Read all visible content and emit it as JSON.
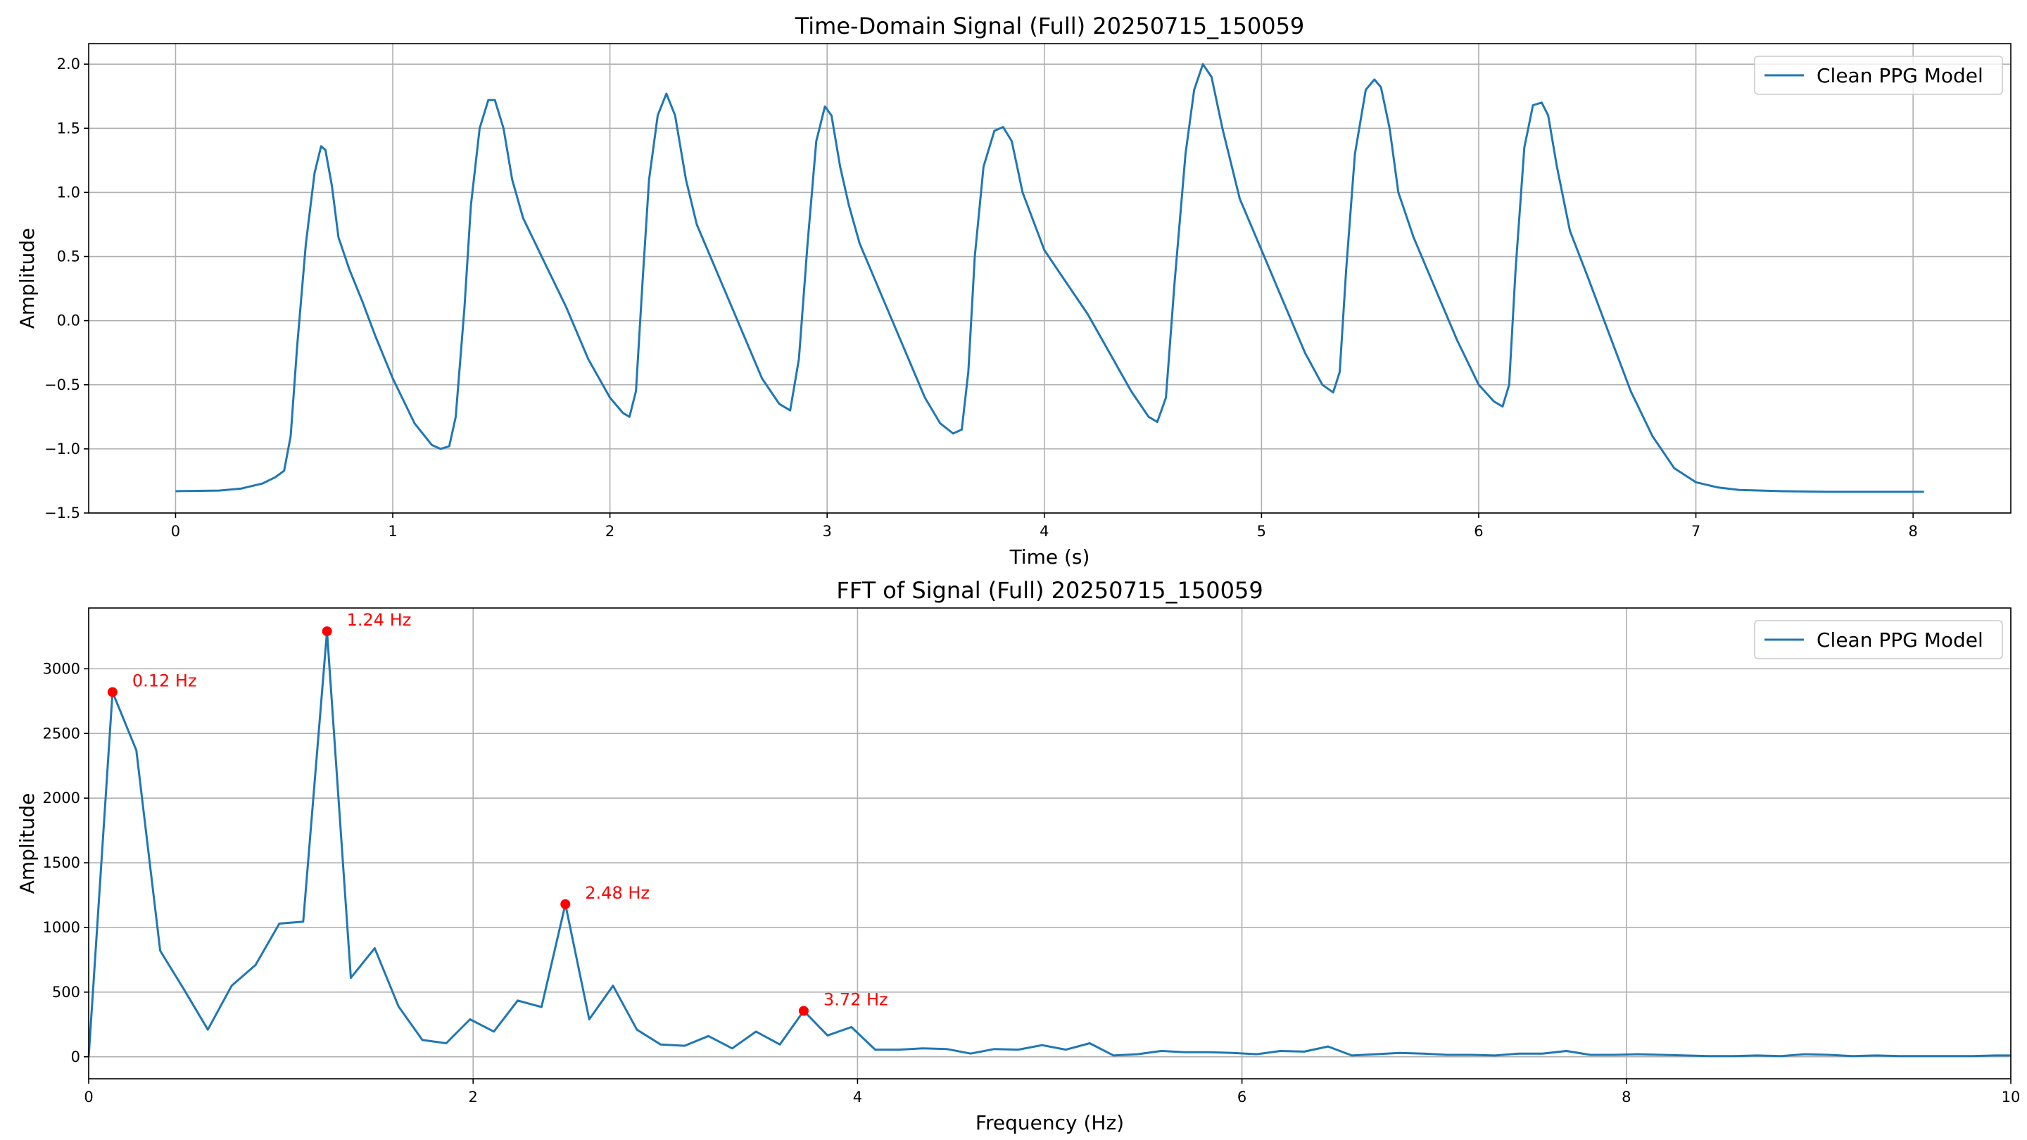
{
  "chart_data": [
    {
      "type": "line",
      "title": "Time-Domain Signal (Full) 20250715_150059",
      "xlabel": "Time (s)",
      "ylabel": "Amplitude",
      "xlim": [
        -0.4,
        8.45
      ],
      "ylim": [
        -1.5,
        2.16
      ],
      "xticks": [
        0,
        1,
        2,
        3,
        4,
        5,
        6,
        7,
        8
      ],
      "yticks": [
        -1.5,
        -1.0,
        -0.5,
        0.0,
        0.5,
        1.0,
        1.5,
        2.0
      ],
      "xtick_labels": [
        "0",
        "1",
        "2",
        "3",
        "4",
        "5",
        "6",
        "7",
        "8"
      ],
      "ytick_labels": [
        "−1.5",
        "−1.0",
        "−0.5",
        "0.0",
        "0.5",
        "1.0",
        "1.5",
        "2.0"
      ],
      "grid": true,
      "legend_position": "upper right",
      "series": [
        {
          "name": "Clean PPG Model",
          "color": "#1f77b4",
          "x": [
            0,
            0.2,
            0.3,
            0.4,
            0.46,
            0.5,
            0.53,
            0.56,
            0.6,
            0.64,
            0.67,
            0.69,
            0.72,
            0.75,
            0.8,
            0.86,
            0.92,
            1.0,
            1.1,
            1.18,
            1.22,
            1.26,
            1.29,
            1.33,
            1.36,
            1.4,
            1.44,
            1.47,
            1.51,
            1.55,
            1.6,
            1.7,
            1.8,
            1.9,
            2.0,
            2.06,
            2.09,
            2.12,
            2.15,
            2.18,
            2.22,
            2.26,
            2.3,
            2.35,
            2.4,
            2.5,
            2.6,
            2.7,
            2.78,
            2.83,
            2.87,
            2.91,
            2.95,
            2.99,
            3.02,
            3.06,
            3.1,
            3.15,
            3.25,
            3.35,
            3.45,
            3.52,
            3.58,
            3.62,
            3.65,
            3.68,
            3.72,
            3.77,
            3.81,
            3.85,
            3.9,
            4.0,
            4.1,
            4.2,
            4.3,
            4.4,
            4.48,
            4.52,
            4.56,
            4.6,
            4.65,
            4.69,
            4.73,
            4.77,
            4.82,
            4.9,
            5.0,
            5.1,
            5.2,
            5.28,
            5.33,
            5.36,
            5.39,
            5.43,
            5.48,
            5.52,
            5.55,
            5.59,
            5.63,
            5.7,
            5.8,
            5.9,
            6.0,
            6.07,
            6.11,
            6.14,
            6.17,
            6.21,
            6.25,
            6.29,
            6.32,
            6.36,
            6.42,
            6.5,
            6.6,
            6.7,
            6.8,
            6.9,
            7.0,
            7.1,
            7.2,
            7.4,
            7.6,
            8.05
          ],
          "y": [
            -1.33,
            -1.325,
            -1.31,
            -1.27,
            -1.22,
            -1.17,
            -0.9,
            -0.2,
            0.6,
            1.15,
            1.36,
            1.33,
            1.05,
            0.65,
            0.4,
            0.15,
            -0.12,
            -0.45,
            -0.8,
            -0.97,
            -1.0,
            -0.98,
            -0.75,
            0.1,
            0.9,
            1.5,
            1.72,
            1.72,
            1.5,
            1.1,
            0.8,
            0.45,
            0.1,
            -0.3,
            -0.6,
            -0.72,
            -0.75,
            -0.55,
            0.3,
            1.1,
            1.6,
            1.77,
            1.6,
            1.1,
            0.75,
            0.35,
            -0.05,
            -0.45,
            -0.65,
            -0.7,
            -0.3,
            0.6,
            1.4,
            1.67,
            1.6,
            1.2,
            0.9,
            0.6,
            0.2,
            -0.2,
            -0.6,
            -0.8,
            -0.88,
            -0.85,
            -0.4,
            0.5,
            1.2,
            1.48,
            1.51,
            1.4,
            1.0,
            0.55,
            0.3,
            0.05,
            -0.25,
            -0.55,
            -0.75,
            -0.79,
            -0.6,
            0.3,
            1.3,
            1.8,
            2.0,
            1.9,
            1.5,
            0.95,
            0.55,
            0.15,
            -0.25,
            -0.5,
            -0.56,
            -0.4,
            0.4,
            1.3,
            1.8,
            1.88,
            1.82,
            1.5,
            1.0,
            0.65,
            0.25,
            -0.15,
            -0.5,
            -0.63,
            -0.67,
            -0.5,
            0.4,
            1.35,
            1.68,
            1.7,
            1.6,
            1.2,
            0.7,
            0.35,
            -0.1,
            -0.55,
            -0.9,
            -1.15,
            -1.26,
            -1.3,
            -1.32,
            -1.33,
            -1.335,
            -1.335
          ]
        }
      ]
    },
    {
      "type": "line",
      "title": "FFT of Signal (Full) 20250715_150059",
      "xlabel": "Frequency (Hz)",
      "ylabel": "Amplitude",
      "xlim": [
        0,
        10
      ],
      "ylim": [
        -170,
        3470
      ],
      "xticks": [
        0,
        2,
        4,
        6,
        8,
        10
      ],
      "yticks": [
        0,
        500,
        1000,
        1500,
        2000,
        2500,
        3000
      ],
      "xtick_labels": [
        "0",
        "2",
        "4",
        "6",
        "8",
        "10"
      ],
      "ytick_labels": [
        "0",
        "500",
        "1000",
        "1500",
        "2000",
        "2500",
        "3000"
      ],
      "grid": true,
      "legend_position": "upper right",
      "series": [
        {
          "name": "Clean PPG Model",
          "color": "#1f77b4",
          "x": [
            0,
            0.124,
            0.248,
            0.372,
            0.496,
            0.62,
            0.744,
            0.868,
            0.992,
            1.116,
            1.24,
            1.364,
            1.488,
            1.612,
            1.736,
            1.86,
            1.984,
            2.108,
            2.232,
            2.356,
            2.48,
            2.604,
            2.728,
            2.852,
            2.976,
            3.1,
            3.224,
            3.348,
            3.472,
            3.596,
            3.72,
            3.844,
            3.968,
            4.092,
            4.216,
            4.34,
            4.464,
            4.588,
            4.712,
            4.836,
            4.96,
            5.084,
            5.208,
            5.332,
            5.456,
            5.58,
            5.704,
            5.828,
            5.952,
            6.076,
            6.2,
            6.324,
            6.448,
            6.572,
            6.696,
            6.82,
            6.944,
            7.068,
            7.192,
            7.316,
            7.44,
            7.564,
            7.688,
            7.812,
            7.936,
            8.06,
            8.184,
            8.308,
            8.432,
            8.556,
            8.68,
            8.804,
            8.928,
            9.052,
            9.176,
            9.3,
            9.424,
            9.548,
            9.672,
            9.796,
            9.92,
            10.0
          ],
          "y": [
            0,
            2820,
            2370,
            820,
            520,
            210,
            550,
            710,
            1030,
            1045,
            3290,
            610,
            840,
            390,
            130,
            105,
            290,
            195,
            435,
            385,
            1180,
            290,
            550,
            210,
            95,
            85,
            160,
            65,
            195,
            95,
            355,
            165,
            230,
            55,
            55,
            65,
            60,
            25,
            60,
            55,
            90,
            55,
            105,
            10,
            20,
            45,
            35,
            35,
            30,
            20,
            45,
            40,
            80,
            10,
            20,
            30,
            25,
            15,
            15,
            10,
            25,
            25,
            45,
            15,
            15,
            20,
            15,
            10,
            5,
            5,
            10,
            5,
            20,
            15,
            5,
            10,
            5,
            5,
            5,
            5,
            10,
            10
          ]
        }
      ],
      "peaks": [
        {
          "x": 0.124,
          "y": 2820,
          "label": "0.12 Hz"
        },
        {
          "x": 1.24,
          "y": 3290,
          "label": "1.24 Hz"
        },
        {
          "x": 2.48,
          "y": 1180,
          "label": "2.48 Hz"
        },
        {
          "x": 3.72,
          "y": 355,
          "label": "3.72 Hz"
        }
      ],
      "peak_color": "#ff0000"
    }
  ]
}
